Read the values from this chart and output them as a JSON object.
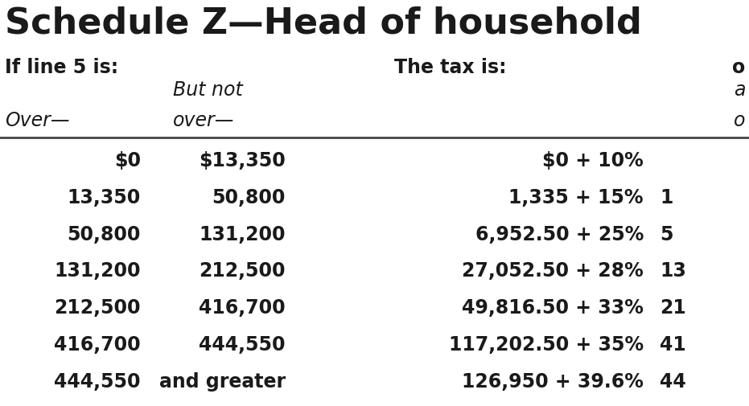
{
  "title": "Schedule Z—Head of household",
  "header1_left": "If line 5 is:",
  "header1_right": "The tax is:",
  "subheader_col1": "Over—",
  "subheader_col2_line1": "But not",
  "subheader_col2_line2": "over—",
  "rows": [
    {
      "col1": "$0",
      "col2": "$13,350",
      "col3": "$0 + 10%",
      "col4": ""
    },
    {
      "col1": "13,350",
      "col2": "50,800",
      "col3": "1,335 + 15%",
      "col4": "1"
    },
    {
      "col1": "50,800",
      "col2": "131,200",
      "col3": "6,952.50 + 25%",
      "col4": "5"
    },
    {
      "col1": "131,200",
      "col2": "212,500",
      "col3": "27,052.50 + 28%",
      "col4": "13"
    },
    {
      "col1": "212,500",
      "col2": "416,700",
      "col3": "49,816.50 + 33%",
      "col4": "21"
    },
    {
      "col1": "416,700",
      "col2": "444,550",
      "col3": "117,202.50 + 35%",
      "col4": "41"
    },
    {
      "col1": "444,550",
      "col2": "and greater",
      "col3": "126,950 + 39.6%",
      "col4": "44"
    }
  ],
  "bg_color": "#ffffff",
  "text_color": "#1a1a1a",
  "title_fontsize": 32,
  "header_fontsize": 17,
  "subheader_fontsize": 17,
  "row_fontsize": 17,
  "fig_width": 9.31,
  "fig_height": 5.06,
  "dpi": 100
}
